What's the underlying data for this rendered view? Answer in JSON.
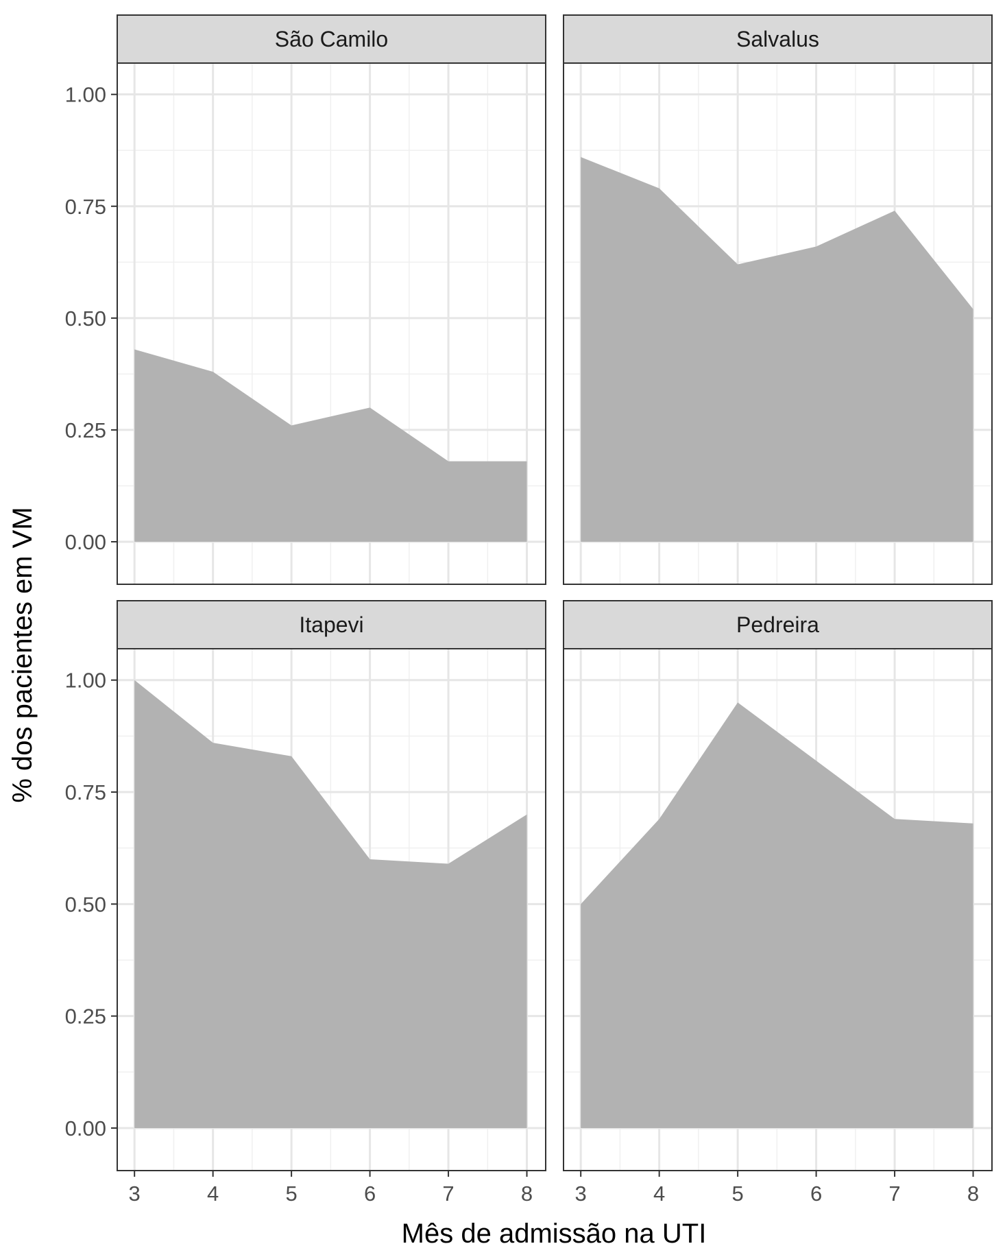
{
  "chart_data": {
    "type": "area",
    "xlabel": "Mês de admissão na UTI",
    "ylabel": "% dos pacientes em VM",
    "x": [
      3,
      4,
      5,
      6,
      7,
      8
    ],
    "xlim": [
      2.78,
      8.24
    ],
    "ylim": [
      -0.095,
      1.07
    ],
    "x_ticks": [
      "3",
      "4",
      "5",
      "6",
      "7",
      "8"
    ],
    "y_ticks": [
      "0.00",
      "0.25",
      "0.50",
      "0.75",
      "1.00"
    ],
    "grid": true,
    "fill_color": "#b2b2b2",
    "strip_color": "#d9d9d9",
    "panels": [
      {
        "name": "São Camilo",
        "values": [
          0.43,
          0.38,
          0.26,
          0.3,
          0.18,
          0.18
        ]
      },
      {
        "name": "Salvalus",
        "values": [
          0.86,
          0.79,
          0.62,
          0.66,
          0.74,
          0.52
        ]
      },
      {
        "name": "Itapevi",
        "values": [
          1.0,
          0.86,
          0.83,
          0.6,
          0.59,
          0.7
        ]
      },
      {
        "name": "Pedreira",
        "values": [
          0.5,
          0.69,
          0.95,
          0.82,
          0.69,
          0.68
        ]
      }
    ]
  }
}
